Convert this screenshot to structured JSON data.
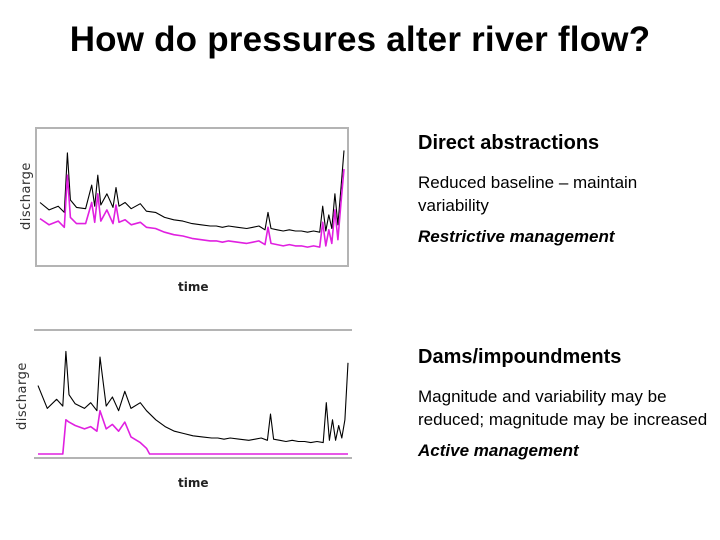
{
  "title": "How do pressures alter river flow?",
  "colors": {
    "natural": "#000000",
    "altered": "#e020e0",
    "frame": "#b4b4b4",
    "plot_bg": "#ffffff"
  },
  "sections": [
    {
      "heading": "Direct abstractions",
      "description": "Reduced baseline – maintain variability",
      "management": "Restrictive management"
    },
    {
      "heading": "Dams/impoundments",
      "description": "Magnitude and variability may be reduced; magnitude may be increased",
      "management": "Active management"
    }
  ],
  "chart_data": [
    {
      "type": "line",
      "xlabel": "time",
      "ylabel": "discharge",
      "xlim": [
        0,
        100
      ],
      "ylim": [
        0,
        100
      ],
      "grid": false,
      "series": [
        {
          "color": "#000000",
          "x": [
            0,
            3,
            6,
            8,
            9,
            10,
            12,
            15,
            17,
            18,
            19,
            20,
            22,
            24,
            25,
            26,
            28,
            30,
            33,
            35,
            38,
            41,
            44,
            47,
            50,
            53,
            56,
            58,
            60,
            62,
            65,
            68,
            70,
            72,
            74,
            75,
            76,
            78,
            80,
            82,
            84,
            86,
            88,
            90,
            92,
            93,
            94,
            95,
            96,
            97,
            98,
            99,
            100
          ],
          "y": [
            48,
            42,
            45,
            40,
            88,
            50,
            44,
            43,
            62,
            45,
            70,
            46,
            55,
            44,
            60,
            45,
            48,
            43,
            47,
            41,
            40,
            36,
            34,
            33,
            31,
            30,
            29,
            29,
            28,
            29,
            28,
            27,
            28,
            29,
            26,
            40,
            27,
            26,
            25,
            26,
            25,
            25,
            24,
            25,
            24,
            45,
            25,
            38,
            27,
            55,
            30,
            60,
            90
          ]
        },
        {
          "color": "#e020e0",
          "x": [
            0,
            3,
            6,
            8,
            9,
            10,
            12,
            15,
            17,
            18,
            19,
            20,
            22,
            24,
            25,
            26,
            28,
            30,
            33,
            35,
            38,
            41,
            44,
            47,
            50,
            53,
            56,
            58,
            60,
            62,
            65,
            68,
            70,
            72,
            74,
            75,
            76,
            78,
            80,
            82,
            84,
            86,
            88,
            90,
            92,
            93,
            94,
            95,
            96,
            97,
            98,
            99,
            100
          ],
          "y": [
            35,
            30,
            33,
            28,
            70,
            36,
            31,
            31,
            48,
            32,
            55,
            33,
            42,
            31,
            46,
            32,
            34,
            30,
            32,
            28,
            27,
            24,
            22,
            21,
            19,
            18,
            17,
            17,
            16,
            17,
            16,
            15,
            16,
            17,
            14,
            28,
            15,
            14,
            13,
            14,
            13,
            13,
            12,
            13,
            12,
            32,
            13,
            26,
            15,
            42,
            18,
            48,
            75
          ]
        }
      ]
    },
    {
      "type": "line",
      "xlabel": "time",
      "ylabel": "discharge",
      "xlim": [
        0,
        100
      ],
      "ylim": [
        0,
        100
      ],
      "grid": false,
      "series": [
        {
          "color": "#000000",
          "x": [
            0,
            3,
            6,
            8,
            9,
            10,
            12,
            15,
            17,
            19,
            20,
            22,
            24,
            26,
            28,
            30,
            33,
            35,
            38,
            41,
            44,
            47,
            50,
            53,
            56,
            58,
            60,
            62,
            65,
            68,
            70,
            72,
            74,
            75,
            76,
            78,
            80,
            82,
            84,
            86,
            88,
            90,
            92,
            93,
            94,
            95,
            96,
            97,
            98,
            99,
            100
          ],
          "y": [
            60,
            40,
            48,
            42,
            90,
            52,
            44,
            40,
            45,
            38,
            85,
            42,
            50,
            38,
            55,
            40,
            45,
            38,
            30,
            24,
            20,
            18,
            16,
            15,
            14,
            14,
            13,
            14,
            13,
            12,
            13,
            14,
            12,
            35,
            13,
            12,
            11,
            12,
            11,
            11,
            10,
            11,
            10,
            45,
            12,
            30,
            12,
            25,
            14,
            30,
            80
          ]
        },
        {
          "color": "#e020e0",
          "x": [
            0,
            8,
            9,
            10,
            12,
            15,
            17,
            19,
            20,
            22,
            24,
            26,
            28,
            30,
            33,
            35,
            36,
            38,
            100
          ],
          "y": [
            0,
            0,
            30,
            28,
            25,
            22,
            24,
            20,
            38,
            22,
            26,
            20,
            28,
            15,
            10,
            5,
            0,
            0,
            0
          ]
        }
      ]
    }
  ]
}
